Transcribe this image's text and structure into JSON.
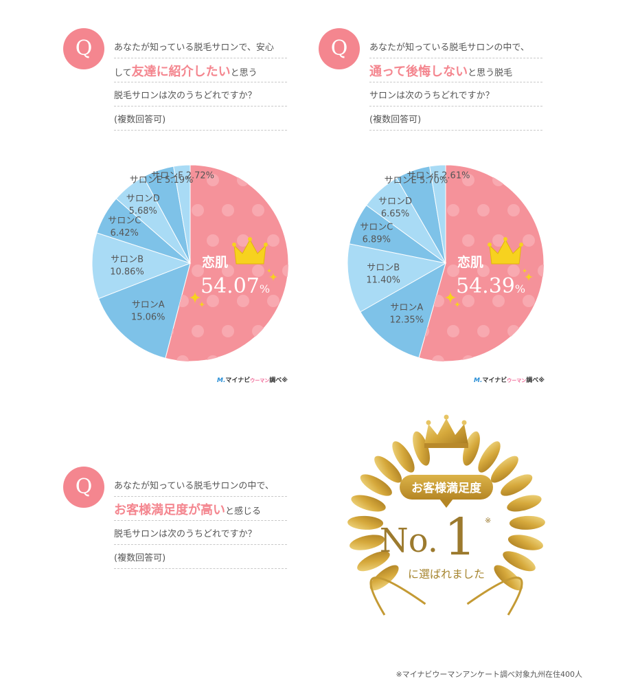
{
  "question1": {
    "badge": "Q",
    "line1": "あなたが知っている脱毛サロンで、安心",
    "line2_pre": "して",
    "line2_highlight": "友達に紹介したい",
    "line2_post": "と思う",
    "line3": "脱毛サロンは次のうちどれですか？",
    "line4": "(複数回答可)"
  },
  "question2": {
    "badge": "Q",
    "line1": "あなたが知っている脱毛サロンの中で、",
    "line2_highlight": "通って後悔しない",
    "line2_post": "と思う脱毛",
    "line3": "サロンは次のうちどれですか？",
    "line4": "(複数回答可)"
  },
  "question3": {
    "badge": "Q",
    "line1": "あなたが知っている脱毛サロンの中で、",
    "line2_highlight": "お客様満足度が高い",
    "line2_post": "と感じる",
    "line3": "脱毛サロンは次のうちどれですか？",
    "line4": "(複数回答可)"
  },
  "chart_data": [
    {
      "type": "pie",
      "categories": [
        "恋肌",
        "サロンA",
        "サロンB",
        "サロンC",
        "サロンD",
        "サロンE",
        "サロンF"
      ],
      "values": [
        54.07,
        15.06,
        10.86,
        6.42,
        5.68,
        5.19,
        2.72
      ],
      "labels": [
        "54.07",
        "15.06%",
        "10.86%",
        "6.42%",
        "5.68%",
        "5.19%",
        "2.72%"
      ]
    },
    {
      "type": "pie",
      "categories": [
        "恋肌",
        "サロンA",
        "サロンB",
        "サロンC",
        "サロンD",
        "サロンE",
        "サロンF"
      ],
      "values": [
        54.39,
        12.35,
        11.4,
        6.89,
        6.65,
        5.7,
        2.61
      ],
      "labels": [
        "54.39",
        "12.35%",
        "11.40%",
        "6.89%",
        "6.65%",
        "5.70%",
        "2.61%"
      ]
    }
  ],
  "colors": {
    "accent_pink": "#f4868f",
    "slice_main": "#f5929a",
    "slice_dark_blue": "#7ec2e8",
    "slice_light_blue": "#a9dbf5",
    "gold": "#d4a93a"
  },
  "percent_sign": "%",
  "credit": {
    "logo": "M.",
    "name": "マイナビ",
    "sub": "ウーマン",
    "suffix": "調べ※"
  },
  "award": {
    "banner": "お客様満足度",
    "no": "No.",
    "one": "1",
    "mark": "※",
    "sub": "に選ばれました"
  },
  "footnote": "※マイナビウーマンアンケート調べ対象九州在住400人"
}
